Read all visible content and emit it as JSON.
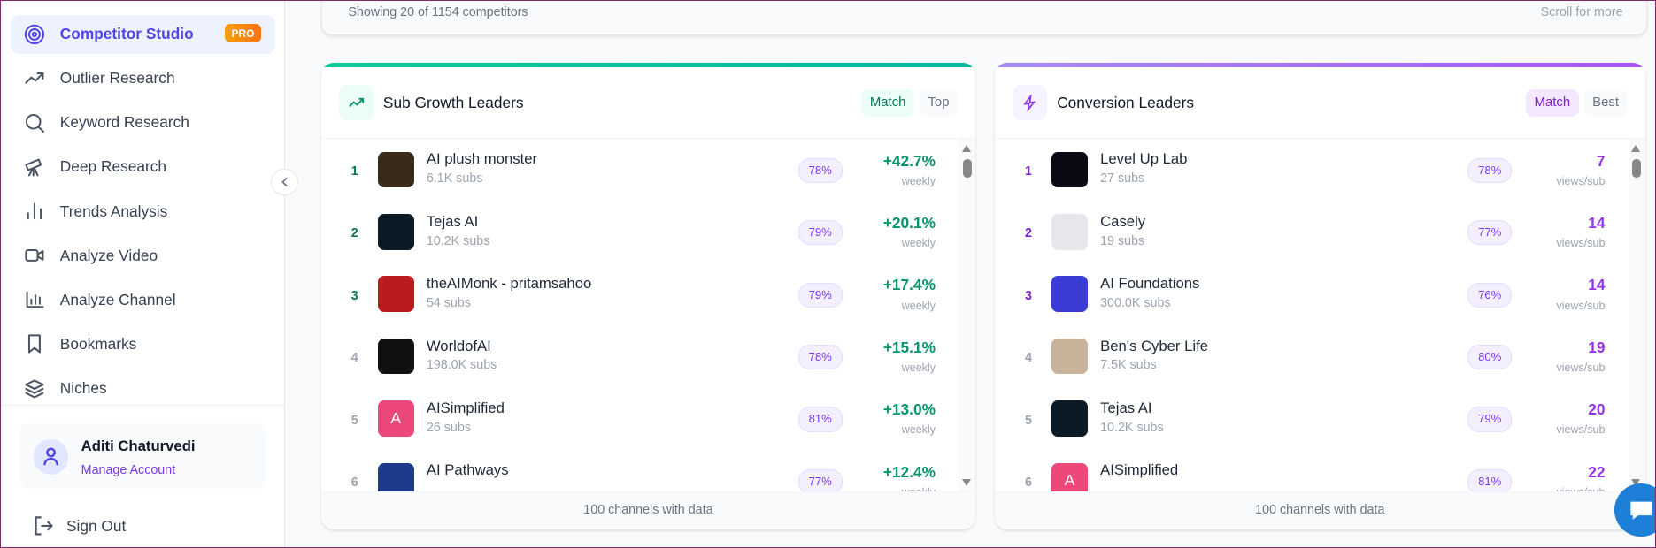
{
  "sidebar": {
    "items": [
      {
        "label": "Competitor Studio",
        "icon": "target-icon",
        "active": true,
        "badge": "PRO"
      },
      {
        "label": "Outlier Research",
        "icon": "trending-up-icon"
      },
      {
        "label": "Keyword Research",
        "icon": "search-icon"
      },
      {
        "label": "Deep Research",
        "icon": "telescope-icon"
      },
      {
        "label": "Trends Analysis",
        "icon": "bar-chart-icon"
      },
      {
        "label": "Analyze Video",
        "icon": "video-icon"
      },
      {
        "label": "Analyze Channel",
        "icon": "chart-icon"
      },
      {
        "label": "Bookmarks",
        "icon": "bookmark-icon"
      },
      {
        "label": "Niches",
        "icon": "layers-icon"
      }
    ],
    "user": {
      "name": "Aditi Chaturvedi",
      "manage": "Manage Account"
    },
    "signout": "Sign Out"
  },
  "summary": {
    "showing": "Showing 20 of 1154 competitors",
    "scroll_hint": "Scroll for more"
  },
  "colors": {
    "green": "#10b981",
    "purple": "#a855f7",
    "accent": "#4f46e5"
  },
  "sub_growth": {
    "title": "Sub Growth Leaders",
    "tabs": [
      "Match",
      "Top"
    ],
    "metric_label": "weekly",
    "footer": "100 channels with data",
    "rows": [
      {
        "rank": "1",
        "name": "AI plush monster",
        "subs": "6.1K subs",
        "match": "78%",
        "value": "+42.7%",
        "avatar": "#3a2a1a"
      },
      {
        "rank": "2",
        "name": "Tejas AI",
        "subs": "10.2K subs",
        "match": "79%",
        "value": "+20.1%",
        "avatar": "#0b1a24"
      },
      {
        "rank": "3",
        "name": "theAIMonk - pritamsahoo",
        "subs": "54 subs",
        "match": "79%",
        "value": "+17.4%",
        "avatar": "#b91c1c"
      },
      {
        "rank": "4",
        "name": "WorldofAI",
        "subs": "198.0K subs",
        "match": "78%",
        "value": "+15.1%",
        "avatar": "#111"
      },
      {
        "rank": "5",
        "name": "AISimplified",
        "subs": "26 subs",
        "match": "81%",
        "value": "+13.0%",
        "avatar": "#ec4879",
        "letter": "A"
      },
      {
        "rank": "6",
        "name": "AI Pathways",
        "subs": "",
        "match": "77%",
        "value": "+12.4%",
        "avatar": "#1e3a8a"
      }
    ]
  },
  "conversion": {
    "title": "Conversion Leaders",
    "tabs": [
      "Match",
      "Best"
    ],
    "metric_label": "views/sub",
    "footer": "100 channels with data",
    "rows": [
      {
        "rank": "1",
        "name": "Level Up Lab",
        "subs": "27 subs",
        "match": "78%",
        "value": "7",
        "avatar": "#0a0a14"
      },
      {
        "rank": "2",
        "name": "Casely",
        "subs": "19 subs",
        "match": "77%",
        "value": "14",
        "avatar": "#e5e7eb"
      },
      {
        "rank": "3",
        "name": "AI Foundations",
        "subs": "300.0K subs",
        "match": "76%",
        "value": "14",
        "avatar": "#3b3bd6"
      },
      {
        "rank": "4",
        "name": "Ben's Cyber Life",
        "subs": "7.5K subs",
        "match": "80%",
        "value": "19",
        "avatar": "#c8b39a"
      },
      {
        "rank": "5",
        "name": "Tejas AI",
        "subs": "10.2K subs",
        "match": "79%",
        "value": "20",
        "avatar": "#0b1a24"
      },
      {
        "rank": "6",
        "name": "AISimplified",
        "subs": "",
        "match": "81%",
        "value": "22",
        "avatar": "#ec4879",
        "letter": "A"
      }
    ]
  }
}
